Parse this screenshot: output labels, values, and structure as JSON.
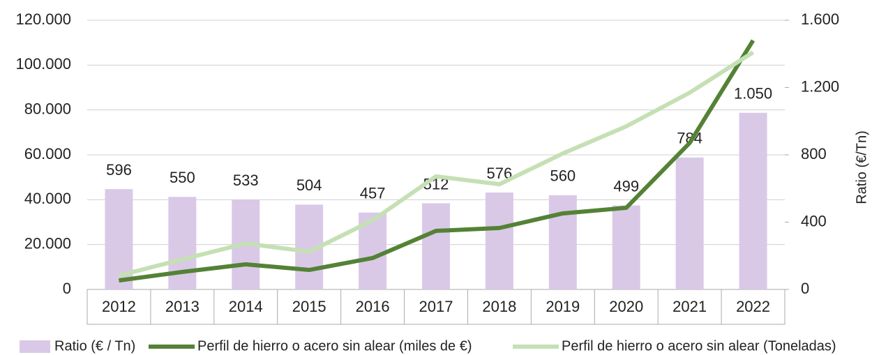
{
  "chart_data": {
    "type": "bar-line",
    "categories": [
      "2012",
      "2013",
      "2014",
      "2015",
      "2016",
      "2017",
      "2018",
      "2019",
      "2020",
      "2021",
      "2022"
    ],
    "y2_title": "Ratio (€/Tn)",
    "ylim": [
      0,
      120000
    ],
    "yticks": [
      0,
      {
        "value": 20000,
        "label": "20.000"
      },
      {
        "value": 40000,
        "label": "40.000"
      },
      {
        "value": 60000,
        "label": "60.000"
      },
      {
        "value": 80000,
        "label": "80.000"
      },
      {
        "value": 100000,
        "label": "100.000"
      },
      {
        "value": 120000,
        "label": "120.000"
      }
    ],
    "y2lim": [
      0,
      1600
    ],
    "y2ticks": [
      0,
      400,
      800,
      {
        "value": 1200,
        "label": "1.200"
      },
      {
        "value": 1600,
        "label": "1.600"
      }
    ],
    "grid": true,
    "legend": "bottom",
    "series": [
      {
        "name": "Ratio (€ / Tn)",
        "type": "bar",
        "axis": "y2",
        "color": "#d9c9e7",
        "values": [
          596,
          550,
          533,
          504,
          457,
          512,
          576,
          560,
          499,
          784,
          1050
        ],
        "value_labels": [
          "596",
          "550",
          "533",
          "504",
          "457",
          "512",
          "576",
          "560",
          "499",
          "784",
          "1.050"
        ]
      },
      {
        "name": "Perfil de hierro o acero sin alear (miles de €)",
        "type": "line",
        "color": "#548235",
        "values": [
          4000,
          7800,
          11200,
          8700,
          14000,
          26100,
          27400,
          33900,
          36400,
          65300,
          111000
        ]
      },
      {
        "name": "Perfil de hierro o acero sin alear (Toneladas)",
        "type": "line",
        "color": "#c5e0b4",
        "values": [
          6200,
          13400,
          20500,
          16800,
          30800,
          50400,
          46900,
          60600,
          72700,
          87700,
          105700
        ]
      }
    ]
  }
}
